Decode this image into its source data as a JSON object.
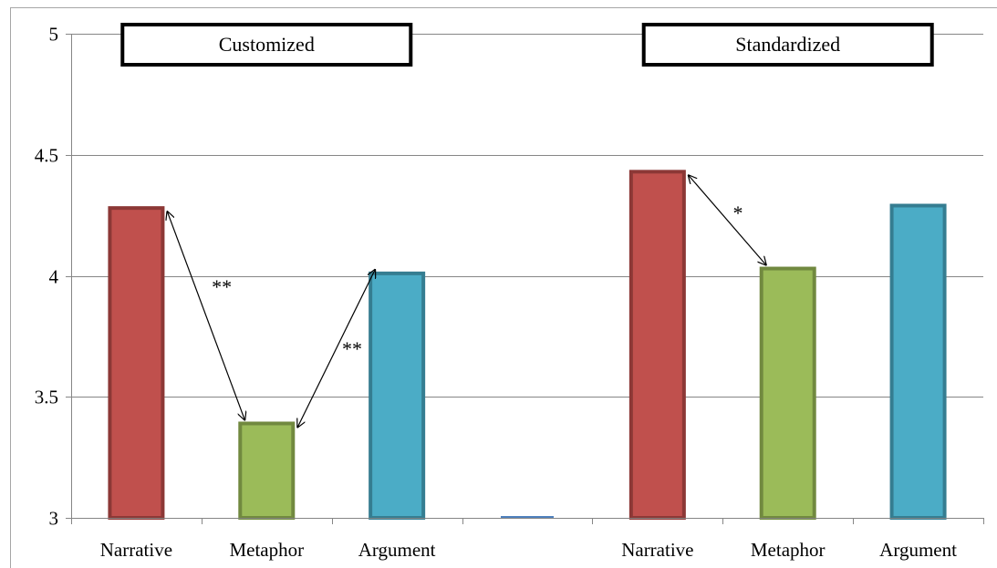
{
  "chart_data": {
    "type": "bar",
    "ylim": [
      3,
      5
    ],
    "yticks": [
      "3",
      "3.5",
      "4",
      "4.5",
      "5"
    ],
    "ytick_values": [
      3,
      3.5,
      4,
      4.5,
      5
    ],
    "grid": true,
    "categories": [
      "Narrative",
      "Metaphor",
      "Argument",
      "",
      "Narrative",
      "Metaphor",
      "Argument"
    ],
    "values": [
      4.28,
      3.39,
      4.01,
      3.0,
      4.43,
      4.03,
      4.29
    ],
    "bar_colors": [
      "#c0504d",
      "#9bbb59",
      "#4bacc6",
      "#4f81bd",
      "#c0504d",
      "#9bbb59",
      "#4bacc6"
    ],
    "bar_border_colors": [
      "#8c3836",
      "#71893f",
      "#357d91",
      "#385d8a",
      "#8c3836",
      "#71893f",
      "#357d91"
    ],
    "groups": [
      {
        "title": "Customized",
        "categories": [
          0,
          1,
          2
        ]
      },
      {
        "title": "Standardized",
        "categories": [
          4,
          5,
          6
        ]
      }
    ],
    "significance": [
      {
        "from": 0,
        "to": 1,
        "label": "**"
      },
      {
        "from": 1,
        "to": 2,
        "label": "**"
      },
      {
        "from": 4,
        "to": 5,
        "label": "*"
      }
    ]
  }
}
